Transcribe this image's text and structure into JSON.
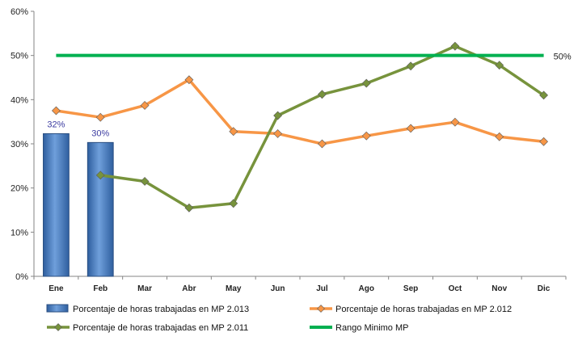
{
  "chart_data": {
    "type": "bar",
    "categories": [
      "Ene",
      "Feb",
      "Mar",
      "Abr",
      "May",
      "Jun",
      "Jul",
      "Ago",
      "Sep",
      "Oct",
      "Nov",
      "Dic"
    ],
    "ylim": [
      0,
      60
    ],
    "yticks": [
      "0%",
      "10%",
      "20%",
      "30%",
      "40%",
      "50%",
      "60%"
    ],
    "grid": false,
    "legend_position": "bottom",
    "series": [
      {
        "name": "Porcentaje de horas trabajadas en MP 2.013",
        "kind": "bar",
        "color": "#4F81BD",
        "values": [
          32.3,
          30.3,
          null,
          null,
          null,
          null,
          null,
          null,
          null,
          null,
          null,
          null
        ],
        "data_labels": [
          "32%",
          "30%",
          null,
          null,
          null,
          null,
          null,
          null,
          null,
          null,
          null,
          null
        ]
      },
      {
        "name": "Porcentaje de horas trabajadas en MP 2.012",
        "kind": "line",
        "color": "#F79646",
        "values": [
          37.5,
          36.0,
          38.7,
          44.5,
          32.8,
          32.3,
          30.0,
          31.8,
          33.5,
          34.9,
          31.6,
          30.5
        ]
      },
      {
        "name": "Porcentaje de horas trabajadas en MP 2.011",
        "kind": "line",
        "color": "#77933C",
        "values": [
          null,
          22.9,
          21.5,
          15.5,
          16.5,
          36.4,
          41.2,
          43.7,
          47.6,
          52.1,
          47.8,
          41.0
        ]
      },
      {
        "name": "Rango Minimo MP",
        "kind": "line",
        "color": "#00B050",
        "values": [
          50,
          50,
          50,
          50,
          50,
          50,
          50,
          50,
          50,
          50,
          50,
          50
        ],
        "end_label": "50%"
      }
    ]
  }
}
